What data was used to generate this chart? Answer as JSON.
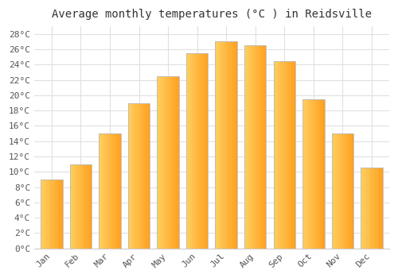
{
  "title": "Average monthly temperatures (°C ) in Reidsville",
  "months": [
    "Jan",
    "Feb",
    "Mar",
    "Apr",
    "May",
    "Jun",
    "Jul",
    "Aug",
    "Sep",
    "Oct",
    "Nov",
    "Dec"
  ],
  "values": [
    9.0,
    11.0,
    15.0,
    19.0,
    22.5,
    25.5,
    27.0,
    26.5,
    24.5,
    19.5,
    15.0,
    10.5
  ],
  "bar_color_left": "#FFD060",
  "bar_color_right": "#FFA020",
  "bar_edge_color": "#BBBBBB",
  "ylim": [
    0,
    29
  ],
  "yticks": [
    0,
    2,
    4,
    6,
    8,
    10,
    12,
    14,
    16,
    18,
    20,
    22,
    24,
    26,
    28
  ],
  "ytick_labels": [
    "0°C",
    "2°C",
    "4°C",
    "6°C",
    "8°C",
    "10°C",
    "12°C",
    "14°C",
    "16°C",
    "18°C",
    "20°C",
    "22°C",
    "24°C",
    "26°C",
    "28°C"
  ],
  "bg_color": "#ffffff",
  "grid_color": "#e0e0e0",
  "title_fontsize": 10,
  "tick_fontsize": 8,
  "font_family": "monospace",
  "bar_width": 0.75,
  "gradient_steps": 50
}
